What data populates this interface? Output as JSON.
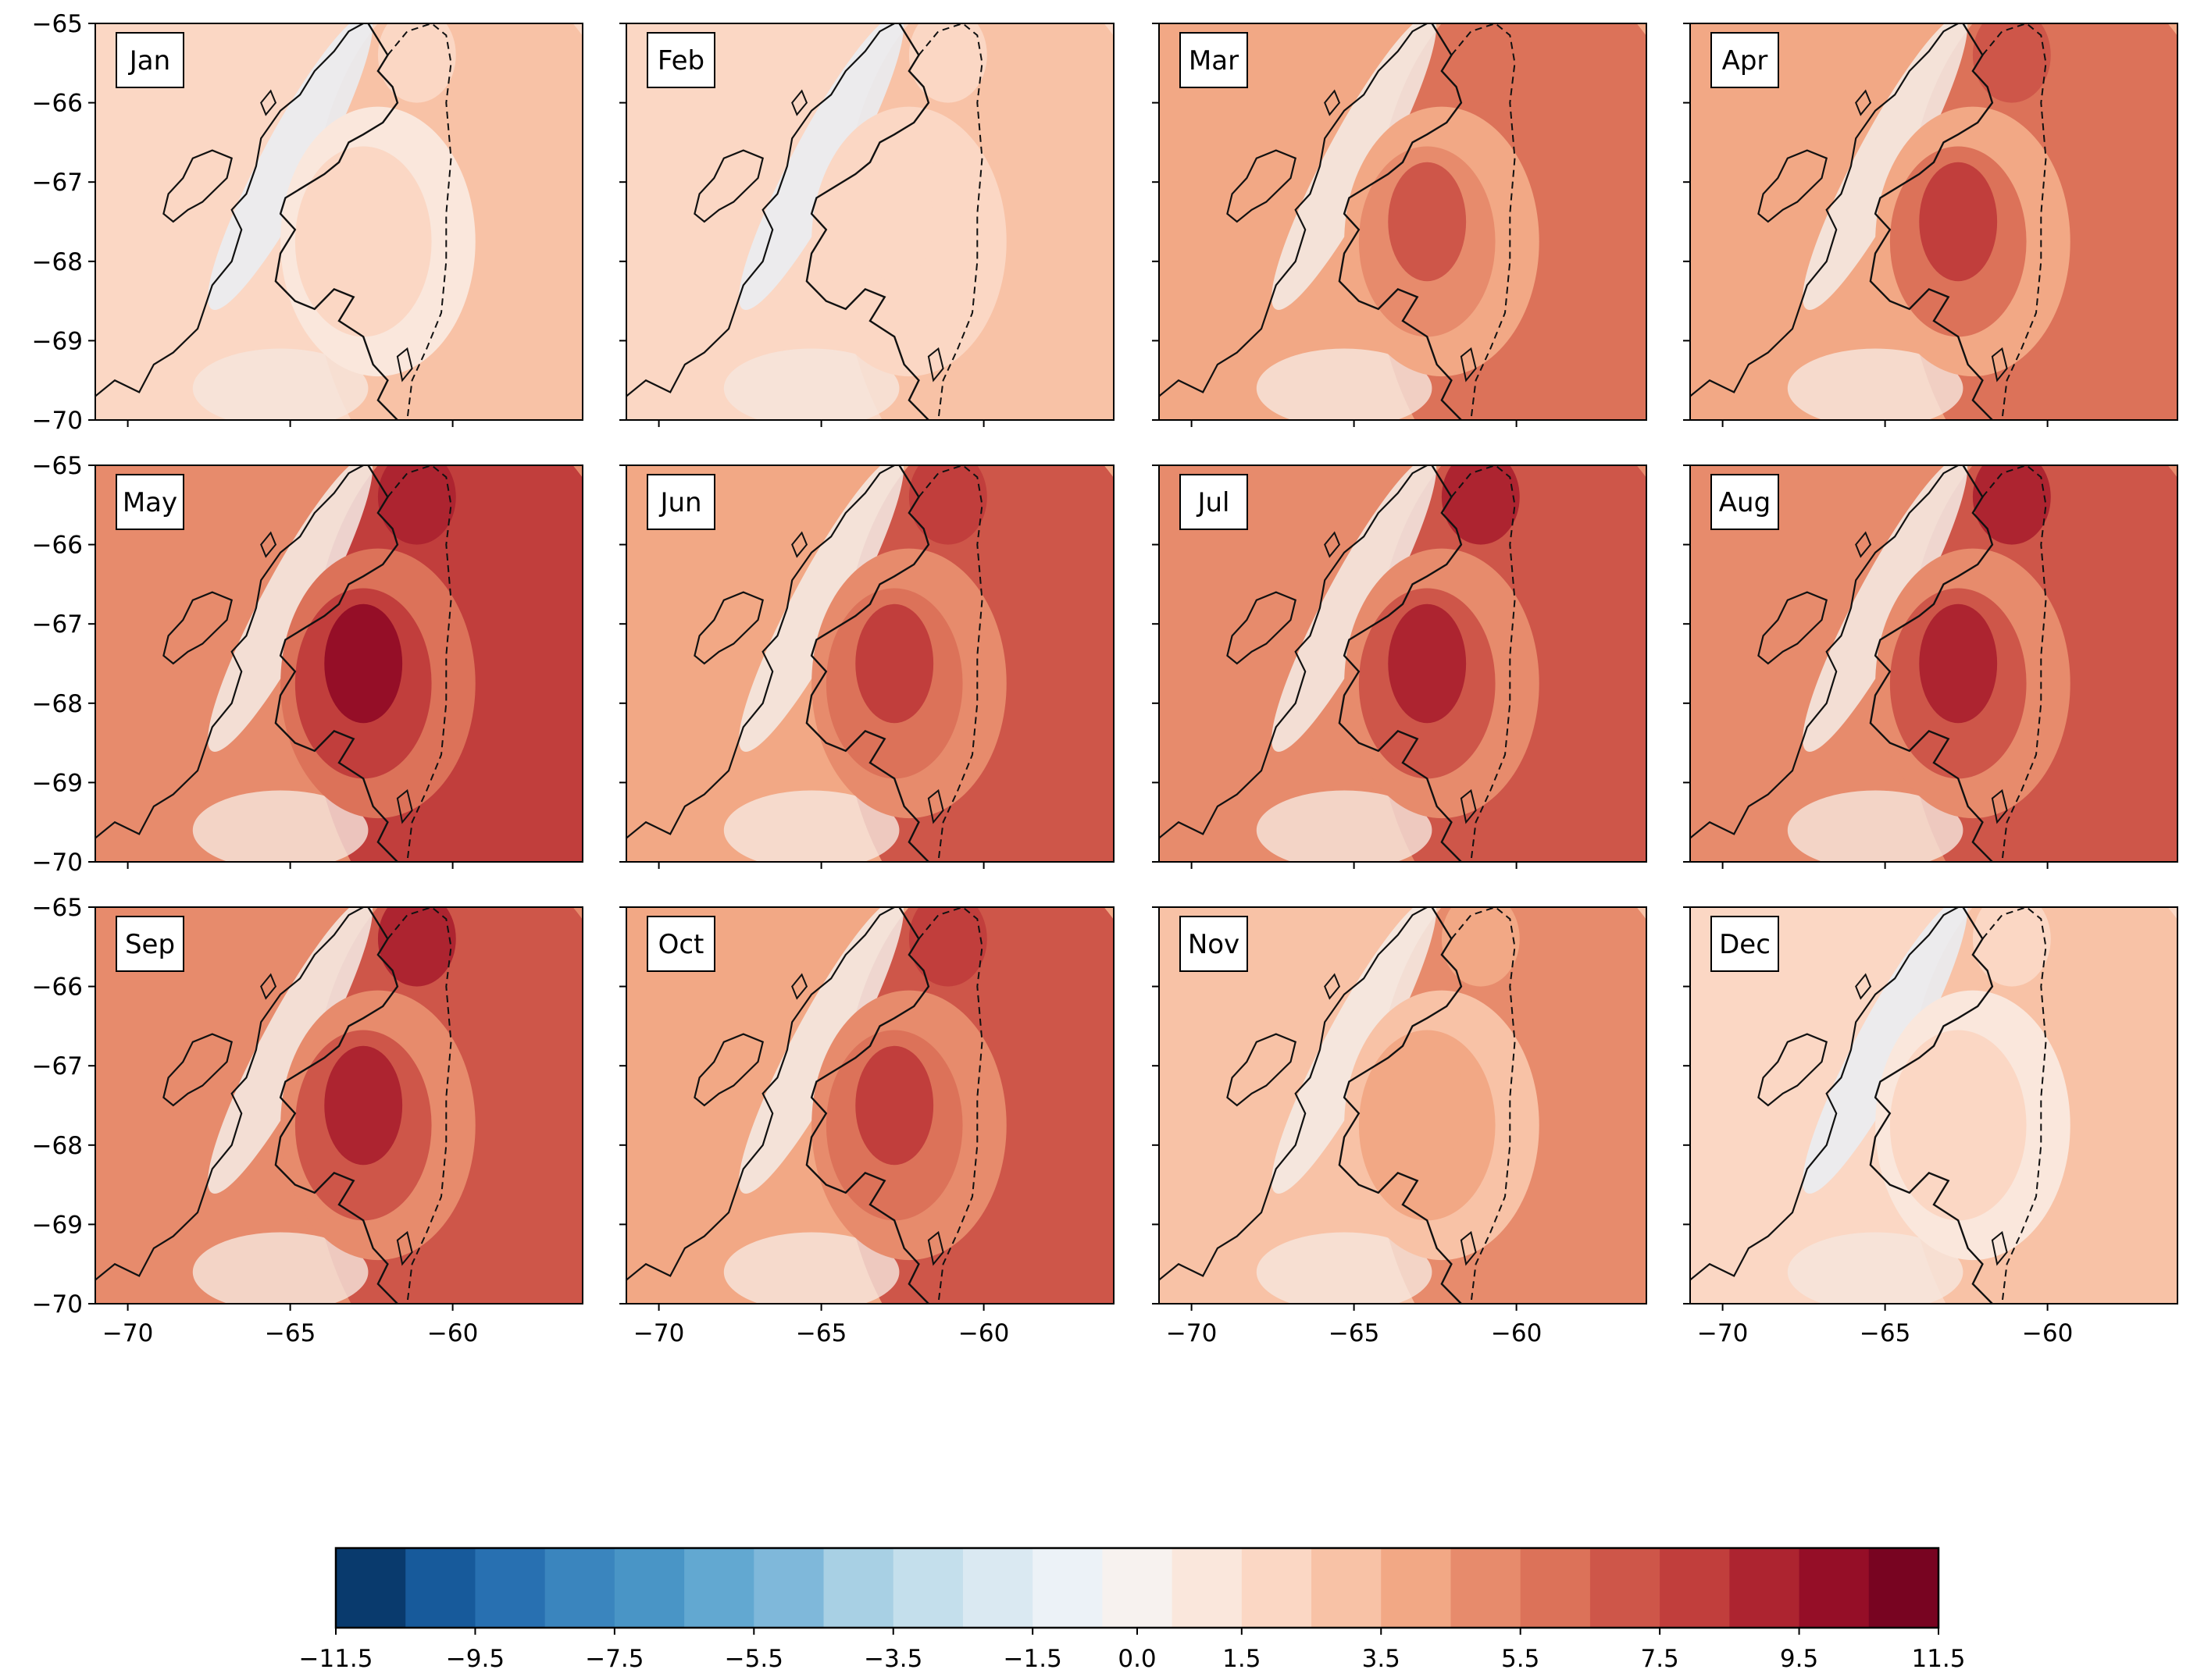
{
  "chart_data": {
    "type": "heatmap",
    "layout": "3x4 small multiples",
    "panels": [
      {
        "month": "Jan",
        "intensity": 0.12
      },
      {
        "month": "Feb",
        "intensity": 0.16
      },
      {
        "month": "Mar",
        "intensity": 0.62
      },
      {
        "month": "Apr",
        "intensity": 0.72
      },
      {
        "month": "May",
        "intensity": 0.95
      },
      {
        "month": "Jun",
        "intensity": 0.78
      },
      {
        "month": "Jul",
        "intensity": 0.88
      },
      {
        "month": "Aug",
        "intensity": 0.92
      },
      {
        "month": "Sep",
        "intensity": 0.86
      },
      {
        "month": "Oct",
        "intensity": 0.76
      },
      {
        "month": "Nov",
        "intensity": 0.38
      },
      {
        "month": "Dec",
        "intensity": 0.1
      }
    ],
    "x_axis": {
      "range": [
        -71,
        -56
      ],
      "ticks": [
        -70,
        -65,
        -60
      ],
      "tick_labels": [
        "−70",
        "−65",
        "−60"
      ]
    },
    "y_axis": {
      "range": [
        -70,
        -65
      ],
      "ticks": [
        -65,
        -66,
        -67,
        -68,
        -69,
        -70
      ],
      "tick_labels": [
        "−65",
        "−66",
        "−67",
        "−68",
        "−69",
        "−70"
      ]
    },
    "colorbar": {
      "cmap": "RdBu_r",
      "vmin": -11.5,
      "vmax": 11.5,
      "n_bins": 23,
      "ticks": [
        -11.5,
        -9.5,
        -7.5,
        -5.5,
        -3.5,
        -1.5,
        0.0,
        1.5,
        3.5,
        5.5,
        7.5,
        9.5,
        11.5
      ],
      "tick_labels": [
        "−11.5",
        "−9.5",
        "−7.5",
        "−5.5",
        "−3.5",
        "−1.5",
        "0.0",
        "1.5",
        "3.5",
        "5.5",
        "7.5",
        "9.5",
        "11.5"
      ],
      "colors": [
        "#093a6d",
        "#175a9b",
        "#2870b1",
        "#3a85be",
        "#4995c6",
        "#62a8d1",
        "#7fb8da",
        "#a8d0e4",
        "#c4dfec",
        "#dae9f2",
        "#ecf2f7",
        "#f7f2ef",
        "#fae7dc",
        "#fbd7c4",
        "#f8c2a6",
        "#f2a885",
        "#e78b6c",
        "#dc7259",
        "#ce5649",
        "#c13e3c",
        "#ad2430",
        "#950e27",
        "#780421"
      ]
    }
  }
}
